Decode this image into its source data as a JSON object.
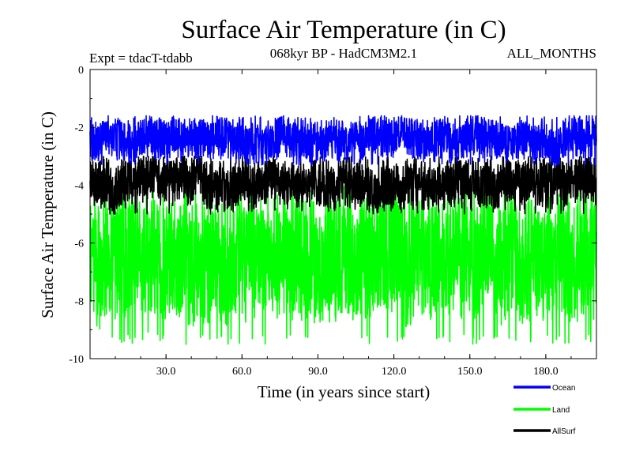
{
  "chart_data": {
    "type": "line",
    "title": "Surface Air Temperature (in C)",
    "subtitle_left": "Expt = tdacT-tdabb",
    "subtitle_center": "068kyr BP - HadCM3M2.1",
    "subtitle_right": "ALL_MONTHS",
    "xlabel": "Time (in years since start)",
    "ylabel": "Surface Air Temperature (in C)",
    "xlim": [
      0,
      200
    ],
    "ylim": [
      -10,
      0
    ],
    "x_ticks": [
      30,
      60,
      90,
      120,
      150,
      180
    ],
    "x_tick_labels": [
      "30.0",
      "60.0",
      "90.0",
      "120.0",
      "150.0",
      "180.0"
    ],
    "y_ticks": [
      0,
      -2,
      -4,
      -6,
      -8,
      -10
    ],
    "y_tick_labels": [
      "0",
      "-2",
      "-4",
      "-6",
      "-8",
      "-10"
    ],
    "series": [
      {
        "name": "Ocean",
        "color": "#0000ff",
        "mean": -2.4,
        "low": -3.3,
        "high": -1.6,
        "samples_per_year": 12
      },
      {
        "name": "Land",
        "color": "#00ff00",
        "mean": -6.6,
        "low": -9.5,
        "high": -4.0,
        "samples_per_year": 12
      },
      {
        "name": "AllSurf",
        "color": "#000000",
        "mean": -4.0,
        "low": -5.0,
        "high": -3.0,
        "samples_per_year": 12
      }
    ],
    "legend": {
      "placement": "bottom-right",
      "entries": [
        "Ocean",
        "Land",
        "AllSurf"
      ]
    }
  }
}
